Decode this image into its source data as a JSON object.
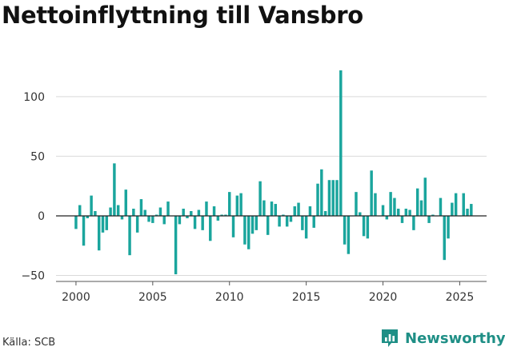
{
  "title": "Nettoinflyttning till Vansbro",
  "source": "Källa: SCB",
  "brand": {
    "name": "Newsworthy",
    "icon": "newsworthy-logo-icon",
    "color": "#1f8f86"
  },
  "colors": {
    "bar": "#1aa59d",
    "grid": "#d9d9d9",
    "zero_line": "#222222",
    "axis_text": "#333333"
  },
  "chart_data": {
    "type": "bar",
    "title": "Nettoinflyttning till Vansbro",
    "xlabel": "",
    "ylabel": "",
    "xlim": [
      1998.7,
      2026.75
    ],
    "ylim": [
      -55,
      122
    ],
    "x_ticks": [
      2000,
      2005,
      2010,
      2015,
      2020,
      2025
    ],
    "x_tick_labels": [
      "2000",
      "2005",
      "2010",
      "2015",
      "2020",
      "2025"
    ],
    "y_ticks": [
      -50,
      0,
      50,
      100
    ],
    "y_tick_labels": [
      "−50",
      "0",
      "50",
      "100"
    ],
    "grid": "horizontal",
    "frequency": "quarterly",
    "start": "2000-Q1",
    "values": [
      -11,
      9,
      -25,
      -2,
      17,
      4,
      -29,
      -14,
      -12,
      7,
      44,
      9,
      -3,
      22,
      -33,
      6,
      -14,
      14,
      5,
      -5,
      -6,
      1,
      7,
      -7,
      12,
      0,
      -49,
      -7,
      6,
      -2,
      4,
      -11,
      5,
      -12,
      12,
      -21,
      8,
      -4,
      1,
      1,
      20,
      -18,
      17,
      19,
      -24,
      -28,
      -15,
      -12,
      29,
      13,
      -16,
      12,
      10,
      -9,
      1,
      -9,
      -5,
      8,
      11,
      -12,
      -19,
      8,
      -10,
      27,
      39,
      4,
      30,
      30,
      30,
      122,
      -24,
      -32,
      0,
      20,
      3,
      -17,
      -19,
      38,
      19,
      0,
      9,
      -3,
      20,
      15,
      6,
      -6,
      6,
      5,
      -12,
      23,
      13,
      32,
      -6,
      1,
      0,
      15,
      -37,
      -19,
      11,
      19,
      0,
      19,
      6,
      10
    ]
  }
}
